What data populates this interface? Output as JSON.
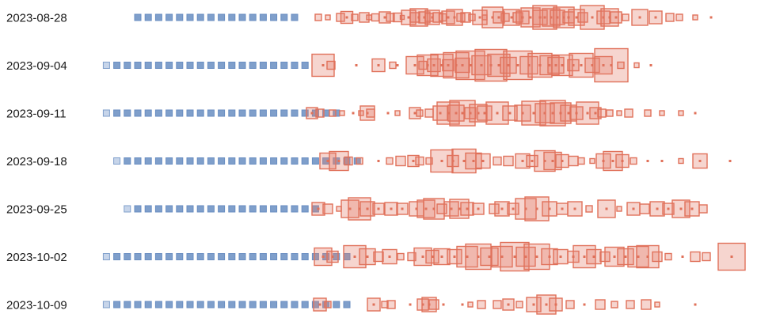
{
  "chart_data": {
    "type": "scatter",
    "title": "",
    "xlabel": "",
    "ylabel": "",
    "grid": false,
    "legend": "none",
    "colors": {
      "before": "#7f9fcb",
      "after": "#e0715a",
      "after_fill": "rgba(226,125,105,0.32)"
    },
    "rows": [
      {
        "label": "2023-08-28",
        "blue": {
          "start_index": 0,
          "count": 16
        },
        "red": [
          [
            4,
            8
          ],
          [
            16,
            6
          ],
          [
            32,
            10
          ],
          [
            40,
            15
          ],
          [
            50,
            8
          ],
          [
            62,
            12
          ],
          [
            68,
            6
          ],
          [
            76,
            9
          ],
          [
            88,
            14
          ],
          [
            95,
            10
          ],
          [
            104,
            11
          ],
          [
            110,
            5
          ],
          [
            118,
            18
          ],
          [
            126,
            12
          ],
          [
            131,
            22
          ],
          [
            138,
            14
          ],
          [
            144,
            10
          ],
          [
            148,
            18
          ],
          [
            155,
            12
          ],
          [
            161,
            9
          ],
          [
            168,
            16
          ],
          [
            176,
            20
          ],
          [
            184,
            10
          ],
          [
            190,
            12
          ],
          [
            198,
            8
          ],
          [
            208,
            18
          ],
          [
            214,
            6
          ],
          [
            224,
            26
          ],
          [
            232,
            14
          ],
          [
            240,
            10
          ],
          [
            248,
            20
          ],
          [
            256,
            12
          ],
          [
            262,
            16
          ],
          [
            272,
            24
          ],
          [
            284,
            18
          ],
          [
            290,
            30
          ],
          [
            298,
            22
          ],
          [
            306,
            18
          ],
          [
            314,
            26
          ],
          [
            320,
            14
          ],
          [
            330,
            20
          ],
          [
            338,
            12
          ],
          [
            350,
            30
          ],
          [
            364,
            16
          ],
          [
            372,
            22
          ],
          [
            380,
            14
          ],
          [
            392,
            8
          ],
          [
            410,
            20
          ],
          [
            430,
            16
          ],
          [
            448,
            10
          ],
          [
            460,
            8
          ],
          [
            480,
            6
          ],
          [
            500,
            4
          ]
        ]
      },
      {
        "label": "2023-09-04",
        "blue": {
          "start_index": -3,
          "count": 20
        },
        "red": [
          [
            10,
            28
          ],
          [
            20,
            10
          ],
          [
            52,
            4
          ],
          [
            80,
            16
          ],
          [
            98,
            8
          ],
          [
            104,
            4
          ],
          [
            126,
            22
          ],
          [
            136,
            10
          ],
          [
            142,
            26
          ],
          [
            150,
            16
          ],
          [
            160,
            28
          ],
          [
            168,
            14
          ],
          [
            178,
            32
          ],
          [
            186,
            18
          ],
          [
            196,
            36
          ],
          [
            210,
            24
          ],
          [
            222,
            40
          ],
          [
            232,
            28
          ],
          [
            244,
            20
          ],
          [
            256,
            36
          ],
          [
            270,
            22
          ],
          [
            284,
            30
          ],
          [
            296,
            24
          ],
          [
            304,
            20
          ],
          [
            312,
            26
          ],
          [
            326,
            14
          ],
          [
            336,
            30
          ],
          [
            350,
            18
          ],
          [
            364,
            22
          ],
          [
            374,
            42
          ],
          [
            386,
            8
          ],
          [
            406,
            6
          ],
          [
            424,
            4
          ]
        ]
      },
      {
        "label": "2023-09-11",
        "blue": {
          "start_index": -3,
          "count": 23
        },
        "red": [
          [
            -4,
            14
          ],
          [
            6,
            10
          ],
          [
            22,
            8
          ],
          [
            34,
            6
          ],
          [
            48,
            4
          ],
          [
            58,
            6
          ],
          [
            66,
            18
          ],
          [
            70,
            10
          ],
          [
            92,
            4
          ],
          [
            104,
            6
          ],
          [
            126,
            14
          ],
          [
            132,
            8
          ],
          [
            144,
            10
          ],
          [
            158,
            18
          ],
          [
            168,
            28
          ],
          [
            178,
            20
          ],
          [
            186,
            32
          ],
          [
            196,
            14
          ],
          [
            206,
            22
          ],
          [
            214,
            18
          ],
          [
            230,
            28
          ],
          [
            246,
            18
          ],
          [
            262,
            20
          ],
          [
            276,
            30
          ],
          [
            290,
            24
          ],
          [
            300,
            32
          ],
          [
            310,
            26
          ],
          [
            320,
            20
          ],
          [
            330,
            16
          ],
          [
            344,
            28
          ],
          [
            354,
            14
          ],
          [
            362,
            10
          ],
          [
            372,
            8
          ],
          [
            384,
            6
          ],
          [
            396,
            10
          ],
          [
            420,
            8
          ],
          [
            438,
            6
          ],
          [
            462,
            6
          ],
          [
            480,
            4
          ]
        ]
      },
      {
        "label": "2023-09-18",
        "blue": {
          "start_index": -2,
          "count": 24
        },
        "red": [
          [
            16,
            20
          ],
          [
            30,
            24
          ],
          [
            42,
            10
          ],
          [
            56,
            8
          ],
          [
            80,
            4
          ],
          [
            94,
            8
          ],
          [
            108,
            12
          ],
          [
            124,
            14
          ],
          [
            132,
            10
          ],
          [
            144,
            8
          ],
          [
            160,
            28
          ],
          [
            174,
            14
          ],
          [
            188,
            30
          ],
          [
            200,
            20
          ],
          [
            212,
            18
          ],
          [
            230,
            10
          ],
          [
            244,
            12
          ],
          [
            262,
            18
          ],
          [
            274,
            14
          ],
          [
            290,
            26
          ],
          [
            300,
            22
          ],
          [
            312,
            16
          ],
          [
            326,
            12
          ],
          [
            336,
            8
          ],
          [
            350,
            6
          ],
          [
            364,
            18
          ],
          [
            376,
            24
          ],
          [
            388,
            16
          ],
          [
            402,
            8
          ],
          [
            420,
            4
          ],
          [
            438,
            4
          ],
          [
            462,
            6
          ],
          [
            486,
            18
          ],
          [
            524,
            4
          ]
        ]
      },
      {
        "label": "2023-09-25",
        "blue": {
          "start_index": -1,
          "count": 19
        },
        "red": [
          [
            4,
            16
          ],
          [
            16,
            12
          ],
          [
            30,
            6
          ],
          [
            44,
            22
          ],
          [
            56,
            28
          ],
          [
            66,
            18
          ],
          [
            80,
            14
          ],
          [
            96,
            16
          ],
          [
            110,
            14
          ],
          [
            128,
            18
          ],
          [
            140,
            22
          ],
          [
            150,
            26
          ],
          [
            160,
            12
          ],
          [
            172,
            18
          ],
          [
            182,
            24
          ],
          [
            192,
            16
          ],
          [
            206,
            14
          ],
          [
            226,
            12
          ],
          [
            236,
            18
          ],
          [
            250,
            14
          ],
          [
            266,
            26
          ],
          [
            280,
            30
          ],
          [
            296,
            18
          ],
          [
            312,
            14
          ],
          [
            328,
            18
          ],
          [
            346,
            8
          ],
          [
            368,
            22
          ],
          [
            384,
            6
          ],
          [
            402,
            16
          ],
          [
            416,
            12
          ],
          [
            432,
            18
          ],
          [
            446,
            14
          ],
          [
            462,
            22
          ],
          [
            476,
            18
          ],
          [
            490,
            10
          ]
        ]
      },
      {
        "label": "2023-10-02",
        "blue": {
          "start_index": -3,
          "count": 24
        },
        "red": [
          [
            10,
            22
          ],
          [
            22,
            14
          ],
          [
            50,
            28
          ],
          [
            66,
            20
          ],
          [
            80,
            12
          ],
          [
            94,
            18
          ],
          [
            108,
            8
          ],
          [
            122,
            10
          ],
          [
            136,
            22
          ],
          [
            148,
            16
          ],
          [
            160,
            20
          ],
          [
            176,
            18
          ],
          [
            192,
            26
          ],
          [
            206,
            32
          ],
          [
            220,
            22
          ],
          [
            236,
            26
          ],
          [
            252,
            36
          ],
          [
            266,
            24
          ],
          [
            280,
            32
          ],
          [
            296,
            20
          ],
          [
            310,
            18
          ],
          [
            326,
            14
          ],
          [
            340,
            28
          ],
          [
            352,
            18
          ],
          [
            366,
            12
          ],
          [
            378,
            24
          ],
          [
            392,
            20
          ],
          [
            408,
            26
          ],
          [
            420,
            28
          ],
          [
            432,
            12
          ],
          [
            446,
            8
          ],
          [
            464,
            4
          ],
          [
            480,
            12
          ],
          [
            494,
            10
          ],
          [
            526,
            34
          ]
        ]
      },
      {
        "label": "2023-10-09",
        "blue": {
          "start_index": -3,
          "count": 24
        },
        "red": [
          [
            6,
            16
          ],
          [
            16,
            8
          ],
          [
            74,
            16
          ],
          [
            88,
            8
          ],
          [
            96,
            10
          ],
          [
            120,
            4
          ],
          [
            136,
            14
          ],
          [
            144,
            18
          ],
          [
            150,
            12
          ],
          [
            162,
            4
          ],
          [
            186,
            4
          ],
          [
            196,
            6
          ],
          [
            210,
            10
          ],
          [
            230,
            10
          ],
          [
            244,
            14
          ],
          [
            258,
            8
          ],
          [
            276,
            18
          ],
          [
            292,
            24
          ],
          [
            304,
            16
          ],
          [
            322,
            10
          ],
          [
            340,
            4
          ],
          [
            360,
            12
          ],
          [
            378,
            8
          ],
          [
            398,
            10
          ],
          [
            418,
            12
          ],
          [
            432,
            6
          ],
          [
            480,
            4
          ]
        ]
      }
    ]
  }
}
